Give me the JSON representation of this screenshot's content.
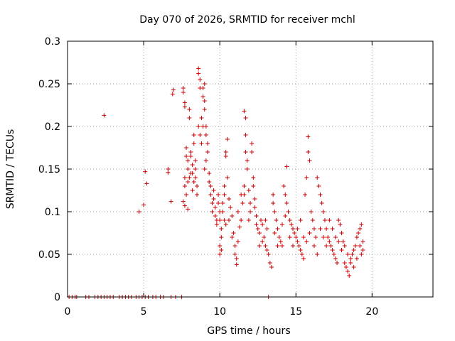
{
  "chart_data": {
    "type": "scatter",
    "title": "Day 070 of 2026, SRMTID for receiver mchl",
    "xlabel": "GPS time / hours",
    "ylabel": "SRMTID / TECUs",
    "xlim": [
      0,
      24
    ],
    "ylim": [
      0,
      0.3
    ],
    "xticks": [
      0,
      5,
      10,
      15,
      20
    ],
    "xtick_labels": [
      "0",
      "5",
      "10",
      "15",
      "20"
    ],
    "yticks": [
      0,
      0.05,
      0.1,
      0.15,
      0.2,
      0.25,
      0.3
    ],
    "ytick_labels": [
      "0",
      "0.05",
      "0.1",
      "0.15",
      "0.2",
      "0.25",
      "0.3"
    ],
    "grid": true,
    "marker": "+",
    "color": "#cc0000",
    "series": [
      {
        "name": "SRMTID",
        "points": [
          [
            0.1,
            0
          ],
          [
            0.3,
            0
          ],
          [
            0.5,
            0
          ],
          [
            0.6,
            0
          ],
          [
            1.2,
            0
          ],
          [
            1.4,
            0
          ],
          [
            1.8,
            0
          ],
          [
            2.0,
            0
          ],
          [
            2.2,
            0
          ],
          [
            2.4,
            0
          ],
          [
            2.6,
            0
          ],
          [
            2.8,
            0
          ],
          [
            3.0,
            0
          ],
          [
            3.4,
            0
          ],
          [
            3.6,
            0
          ],
          [
            3.8,
            0
          ],
          [
            4.0,
            0
          ],
          [
            4.2,
            0
          ],
          [
            4.5,
            0
          ],
          [
            4.7,
            0
          ],
          [
            4.9,
            0
          ],
          [
            5.1,
            0
          ],
          [
            5.3,
            0
          ],
          [
            5.6,
            0
          ],
          [
            5.8,
            0
          ],
          [
            6.1,
            0
          ],
          [
            6.3,
            0
          ],
          [
            6.8,
            0
          ],
          [
            7.1,
            0
          ],
          [
            7.5,
            0
          ],
          [
            13.2,
            0
          ],
          [
            2.4,
            0.213
          ],
          [
            4.7,
            0.1
          ],
          [
            5.0,
            0.108
          ],
          [
            5.1,
            0.147
          ],
          [
            5.2,
            0.133
          ],
          [
            6.6,
            0.15
          ],
          [
            6.6,
            0.146
          ],
          [
            6.8,
            0.112
          ],
          [
            6.9,
            0.238
          ],
          [
            6.95,
            0.243
          ],
          [
            7.6,
            0.112
          ],
          [
            7.7,
            0.107
          ],
          [
            7.9,
            0.103
          ],
          [
            7.6,
            0.245
          ],
          [
            7.6,
            0.24
          ],
          [
            7.7,
            0.228
          ],
          [
            7.7,
            0.223
          ],
          [
            7.8,
            0.175
          ],
          [
            7.8,
            0.165
          ],
          [
            7.9,
            0.16
          ],
          [
            7.9,
            0.15
          ],
          [
            7.7,
            0.14
          ],
          [
            7.7,
            0.13
          ],
          [
            7.8,
            0.12
          ],
          [
            8.0,
            0.22
          ],
          [
            8.0,
            0.21
          ],
          [
            8.1,
            0.17
          ],
          [
            8.1,
            0.165
          ],
          [
            8.2,
            0.155
          ],
          [
            8.2,
            0.145
          ],
          [
            8.3,
            0.19
          ],
          [
            8.3,
            0.18
          ],
          [
            8.4,
            0.16
          ],
          [
            8.4,
            0.14
          ],
          [
            8.5,
            0.13
          ],
          [
            8.5,
            0.12
          ],
          [
            8.6,
            0.268
          ],
          [
            8.6,
            0.262
          ],
          [
            8.7,
            0.255
          ],
          [
            8.7,
            0.245
          ],
          [
            8.6,
            0.2
          ],
          [
            8.7,
            0.19
          ],
          [
            8.8,
            0.18
          ],
          [
            8.9,
            0.245
          ],
          [
            8.9,
            0.235
          ],
          [
            9.0,
            0.25
          ],
          [
            9.0,
            0.23
          ],
          [
            9.0,
            0.22
          ],
          [
            9.1,
            0.2
          ],
          [
            9.1,
            0.19
          ],
          [
            9.2,
            0.18
          ],
          [
            9.2,
            0.17
          ],
          [
            9.1,
            0.16
          ],
          [
            9.0,
            0.15
          ],
          [
            8.8,
            0.21
          ],
          [
            8.9,
            0.2
          ],
          [
            8.4,
            0.15
          ],
          [
            8.3,
            0.135
          ],
          [
            8.2,
            0.125
          ],
          [
            8.1,
            0.145
          ],
          [
            8.0,
            0.14
          ],
          [
            7.9,
            0.135
          ],
          [
            9.3,
            0.145
          ],
          [
            9.3,
            0.135
          ],
          [
            9.4,
            0.13
          ],
          [
            9.4,
            0.12
          ],
          [
            9.5,
            0.11
          ],
          [
            9.5,
            0.1
          ],
          [
            9.6,
            0.125
          ],
          [
            9.6,
            0.115
          ],
          [
            9.7,
            0.105
          ],
          [
            9.7,
            0.095
          ],
          [
            9.8,
            0.09
          ],
          [
            9.8,
            0.085
          ],
          [
            9.9,
            0.12
          ],
          [
            9.9,
            0.11
          ],
          [
            10.0,
            0.1
          ],
          [
            10.0,
            0.09
          ],
          [
            10.1,
            0.08
          ],
          [
            10.1,
            0.07
          ],
          [
            10.2,
            0.11
          ],
          [
            10.2,
            0.1
          ],
          [
            10.3,
            0.09
          ],
          [
            10.4,
            0.085
          ],
          [
            10.0,
            0.06
          ],
          [
            10.0,
            0.05
          ],
          [
            10.1,
            0.055
          ],
          [
            10.3,
            0.13
          ],
          [
            10.3,
            0.12
          ],
          [
            10.4,
            0.17
          ],
          [
            10.4,
            0.165
          ],
          [
            10.5,
            0.185
          ],
          [
            10.5,
            0.14
          ],
          [
            10.6,
            0.115
          ],
          [
            10.7,
            0.105
          ],
          [
            10.8,
            0.095
          ],
          [
            10.9,
            0.075
          ],
          [
            11.0,
            0.06
          ],
          [
            11.0,
            0.05
          ],
          [
            11.1,
            0.045
          ],
          [
            11.1,
            0.038
          ],
          [
            11.2,
            0.065
          ],
          [
            11.3,
            0.082
          ],
          [
            11.4,
            0.09
          ],
          [
            11.5,
            0.11
          ],
          [
            11.6,
            0.12
          ],
          [
            11.6,
            0.13
          ],
          [
            11.7,
            0.17
          ],
          [
            11.7,
            0.19
          ],
          [
            11.6,
            0.218
          ],
          [
            11.7,
            0.21
          ],
          [
            11.8,
            0.16
          ],
          [
            11.8,
            0.15
          ],
          [
            11.9,
            0.125
          ],
          [
            12.0,
            0.11
          ],
          [
            12.0,
            0.1
          ],
          [
            12.1,
            0.18
          ],
          [
            12.1,
            0.17
          ],
          [
            12.2,
            0.14
          ],
          [
            12.2,
            0.13
          ],
          [
            12.3,
            0.115
          ],
          [
            12.3,
            0.105
          ],
          [
            12.4,
            0.095
          ],
          [
            12.4,
            0.085
          ],
          [
            12.5,
            0.08
          ],
          [
            12.6,
            0.075
          ],
          [
            12.7,
            0.09
          ],
          [
            12.8,
            0.085
          ],
          [
            12.9,
            0.07
          ],
          [
            13.0,
            0.06
          ],
          [
            13.1,
            0.055
          ],
          [
            13.2,
            0.05
          ],
          [
            13.3,
            0.04
          ],
          [
            13.4,
            0.035
          ],
          [
            13.5,
            0.12
          ],
          [
            13.5,
            0.11
          ],
          [
            13.6,
            0.1
          ],
          [
            13.7,
            0.09
          ],
          [
            13.8,
            0.08
          ],
          [
            13.9,
            0.07
          ],
          [
            14.0,
            0.065
          ],
          [
            14.1,
            0.06
          ],
          [
            14.2,
            0.13
          ],
          [
            14.3,
            0.12
          ],
          [
            14.4,
            0.11
          ],
          [
            14.4,
            0.153
          ],
          [
            14.5,
            0.1
          ],
          [
            14.6,
            0.09
          ],
          [
            14.7,
            0.085
          ],
          [
            14.8,
            0.08
          ],
          [
            14.9,
            0.075
          ],
          [
            15.0,
            0.07
          ],
          [
            15.1,
            0.065
          ],
          [
            15.2,
            0.06
          ],
          [
            15.3,
            0.055
          ],
          [
            15.4,
            0.05
          ],
          [
            15.5,
            0.045
          ],
          [
            15.6,
            0.12
          ],
          [
            15.7,
            0.14
          ],
          [
            15.8,
            0.188
          ],
          [
            15.8,
            0.17
          ],
          [
            15.9,
            0.16
          ],
          [
            16.0,
            0.1
          ],
          [
            16.1,
            0.09
          ],
          [
            16.2,
            0.08
          ],
          [
            16.3,
            0.07
          ],
          [
            16.4,
            0.14
          ],
          [
            16.5,
            0.13
          ],
          [
            16.6,
            0.12
          ],
          [
            16.7,
            0.11
          ],
          [
            16.8,
            0.1
          ],
          [
            16.9,
            0.09
          ],
          [
            17.0,
            0.08
          ],
          [
            17.1,
            0.07
          ],
          [
            17.2,
            0.065
          ],
          [
            17.3,
            0.06
          ],
          [
            17.4,
            0.055
          ],
          [
            17.5,
            0.05
          ],
          [
            17.6,
            0.045
          ],
          [
            17.7,
            0.04
          ],
          [
            17.8,
            0.09
          ],
          [
            17.9,
            0.085
          ],
          [
            18.0,
            0.075
          ],
          [
            18.1,
            0.065
          ],
          [
            18.2,
            0.04
          ],
          [
            18.3,
            0.035
          ],
          [
            18.4,
            0.03
          ],
          [
            18.5,
            0.025
          ],
          [
            18.6,
            0.045
          ],
          [
            18.7,
            0.05
          ],
          [
            18.8,
            0.055
          ],
          [
            18.9,
            0.06
          ],
          [
            19.0,
            0.07
          ],
          [
            19.1,
            0.075
          ],
          [
            19.2,
            0.08
          ],
          [
            19.3,
            0.085
          ],
          [
            19.4,
            0.065
          ],
          [
            19.4,
            0.055
          ],
          [
            10.6,
            0.09
          ],
          [
            10.8,
            0.07
          ],
          [
            11.2,
            0.1
          ],
          [
            11.4,
            0.12
          ],
          [
            11.9,
            0.09
          ],
          [
            12.6,
            0.06
          ],
          [
            12.8,
            0.065
          ],
          [
            13.0,
            0.09
          ],
          [
            13.1,
            0.08
          ],
          [
            13.6,
            0.075
          ],
          [
            13.8,
            0.06
          ],
          [
            14.1,
            0.085
          ],
          [
            14.3,
            0.095
          ],
          [
            14.6,
            0.07
          ],
          [
            14.8,
            0.06
          ],
          [
            15.1,
            0.08
          ],
          [
            15.3,
            0.09
          ],
          [
            15.5,
            0.07
          ],
          [
            15.7,
            0.065
          ],
          [
            15.9,
            0.075
          ],
          [
            16.2,
            0.06
          ],
          [
            16.4,
            0.05
          ],
          [
            16.6,
            0.08
          ],
          [
            16.8,
            0.07
          ],
          [
            17.0,
            0.06
          ],
          [
            17.2,
            0.09
          ],
          [
            17.4,
            0.08
          ],
          [
            17.6,
            0.07
          ],
          [
            17.8,
            0.065
          ],
          [
            18.0,
            0.055
          ],
          [
            18.2,
            0.06
          ],
          [
            18.4,
            0.05
          ],
          [
            18.6,
            0.04
          ],
          [
            18.8,
            0.035
          ],
          [
            19.0,
            0.045
          ],
          [
            19.2,
            0.06
          ],
          [
            19.3,
            0.05
          ]
        ]
      }
    ]
  }
}
